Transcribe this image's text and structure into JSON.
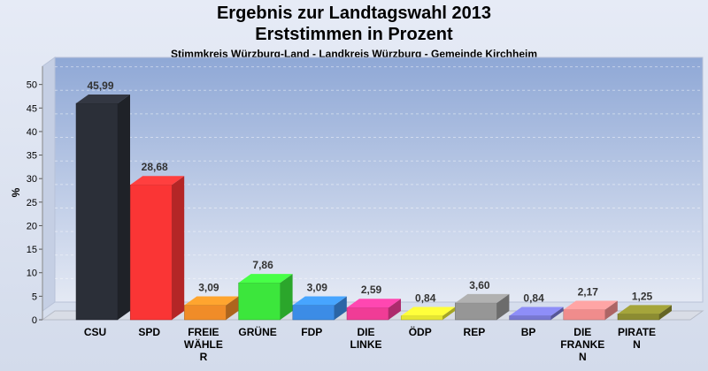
{
  "header": {
    "title": "Ergebnis zur Landtagswahl 2013",
    "subtitle": "Erststimmen in Prozent",
    "region": "Stimmkreis Würzburg-Land - Landkreis Würzburg - Gemeinde Kirchheim"
  },
  "chart_data": {
    "type": "bar",
    "title": "Ergebnis zur Landtagswahl 2013",
    "subtitle": "Erststimmen in Prozent",
    "xlabel": "",
    "ylabel": "%",
    "ylim": [
      0,
      52
    ],
    "yticks": [
      0,
      5,
      10,
      15,
      20,
      25,
      30,
      35,
      40,
      45,
      50
    ],
    "grid": true,
    "legend": "none",
    "categories": [
      [
        "CSU"
      ],
      [
        "SPD"
      ],
      [
        "FREIE",
        "WÄHLE",
        "R"
      ],
      [
        "GRÜNE"
      ],
      [
        "FDP"
      ],
      [
        "DIE",
        "LINKE"
      ],
      [
        "ÖDP"
      ],
      [
        "REP"
      ],
      [
        "BP"
      ],
      [
        "DIE",
        "FRANKE",
        "N"
      ],
      [
        "PIRATE",
        "N"
      ]
    ],
    "values": [
      45.99,
      28.68,
      3.09,
      7.86,
      3.09,
      2.59,
      0.84,
      3.6,
      0.84,
      2.17,
      1.25
    ],
    "value_labels": [
      "45,99",
      "28,68",
      "3,09",
      "7,86",
      "3,09",
      "2,59",
      "0,84",
      "3,60",
      "0,84",
      "2,17",
      "1,25"
    ],
    "colors": [
      "#2b2f38",
      "#fa3535",
      "#f08c28",
      "#3ce63c",
      "#3c8ce6",
      "#f03c96",
      "#e6e632",
      "#969696",
      "#7878d2",
      "#f08c8c",
      "#8c8c32"
    ]
  }
}
